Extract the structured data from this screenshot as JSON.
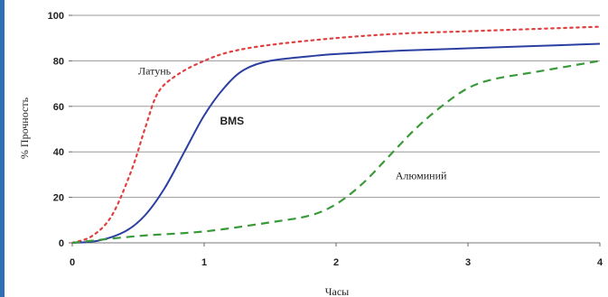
{
  "chart_data": {
    "type": "line",
    "title": "",
    "xlabel": "Часы",
    "ylabel": "% Прочность",
    "xlim": [
      0,
      4
    ],
    "ylim": [
      0,
      100
    ],
    "xticks": [
      "0",
      "1",
      "2",
      "3",
      "4"
    ],
    "yticks": [
      "0",
      "20",
      "40",
      "60",
      "80",
      "100"
    ],
    "grid": "horizontal",
    "series": [
      {
        "name": "Латунь",
        "color": "#e04040",
        "dash": "dotted",
        "points": [
          [
            0,
            0
          ],
          [
            0.15,
            3
          ],
          [
            0.3,
            12
          ],
          [
            0.45,
            32
          ],
          [
            0.55,
            50
          ],
          [
            0.65,
            66
          ],
          [
            0.8,
            74
          ],
          [
            1.0,
            80
          ],
          [
            1.2,
            84
          ],
          [
            1.5,
            87
          ],
          [
            2.0,
            90
          ],
          [
            2.5,
            92
          ],
          [
            3.0,
            93
          ],
          [
            3.5,
            94
          ],
          [
            4.0,
            95
          ]
        ]
      },
      {
        "name": "BMS",
        "color": "#2a3fa0",
        "dash": "solid",
        "points": [
          [
            0,
            0
          ],
          [
            0.2,
            1
          ],
          [
            0.4,
            5
          ],
          [
            0.55,
            12
          ],
          [
            0.7,
            24
          ],
          [
            0.85,
            40
          ],
          [
            1.0,
            56
          ],
          [
            1.15,
            68
          ],
          [
            1.3,
            76
          ],
          [
            1.5,
            80
          ],
          [
            1.8,
            82
          ],
          [
            2.0,
            83
          ],
          [
            2.5,
            84.5
          ],
          [
            3.0,
            85.5
          ],
          [
            3.5,
            86.5
          ],
          [
            4.0,
            87.5
          ]
        ]
      },
      {
        "name": "Алюминий",
        "color": "#3a9a3a",
        "dash": "dashed",
        "points": [
          [
            0,
            0
          ],
          [
            0.5,
            3
          ],
          [
            1.0,
            5
          ],
          [
            1.5,
            9
          ],
          [
            1.8,
            12
          ],
          [
            2.0,
            17
          ],
          [
            2.2,
            26
          ],
          [
            2.4,
            38
          ],
          [
            2.6,
            50
          ],
          [
            2.8,
            60
          ],
          [
            3.0,
            68
          ],
          [
            3.2,
            72
          ],
          [
            3.5,
            75
          ],
          [
            4.0,
            80
          ]
        ]
      }
    ],
    "annotations": [
      {
        "text": "Латунь",
        "x": 0.5,
        "y": 74
      },
      {
        "text": "BMS",
        "x": 1.12,
        "y": 52
      },
      {
        "text": "Алюминий",
        "x": 2.45,
        "y": 28
      }
    ]
  }
}
